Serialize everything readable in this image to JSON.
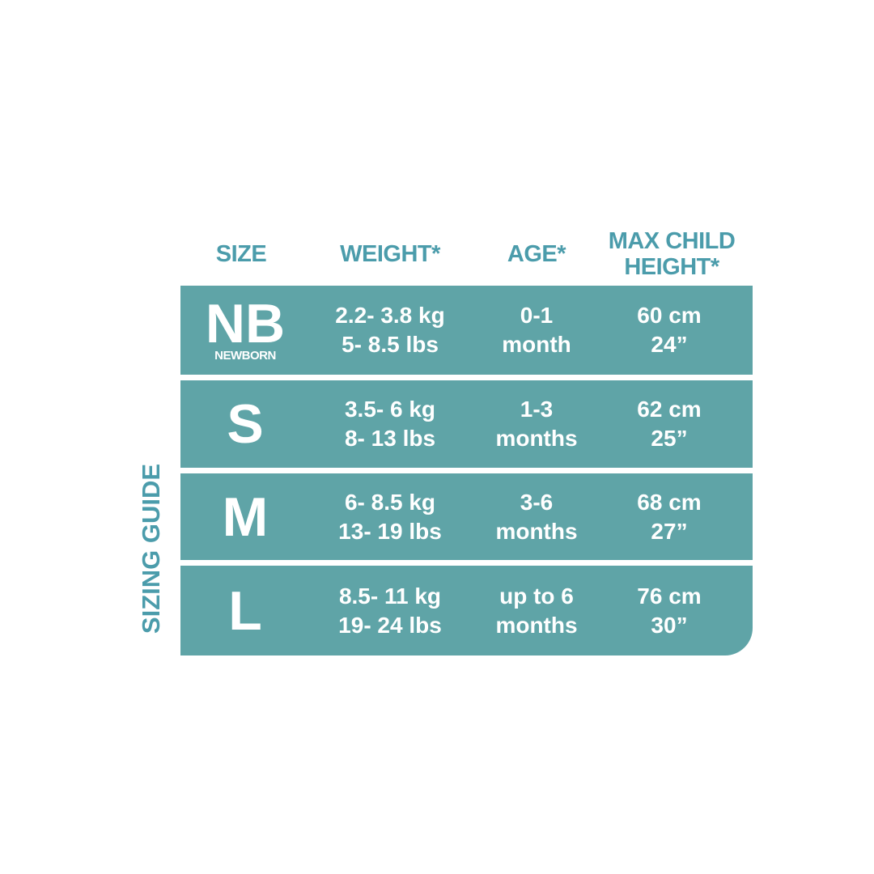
{
  "colors": {
    "row_fill": "#5fa4a7",
    "header_text": "#4b9cab",
    "cell_text": "#ffffff"
  },
  "side_label": "SIZING GUIDE",
  "headers": {
    "size": "SIZE",
    "weight": "WEIGHT*",
    "age": "AGE*",
    "height_line1": "MAX CHILD",
    "height_line2": "HEIGHT*"
  },
  "rows": [
    {
      "size": "NB",
      "size_sub": "NEWBORN",
      "weight_kg": "2.2- 3.8 kg",
      "weight_lbs": "5- 8.5 lbs",
      "age_line1": "0-1",
      "age_line2": "month",
      "height_cm": "60 cm",
      "height_in": "24”"
    },
    {
      "size": "S",
      "size_sub": "",
      "weight_kg": "3.5- 6 kg",
      "weight_lbs": "8- 13 lbs",
      "age_line1": "1-3",
      "age_line2": "months",
      "height_cm": "62 cm",
      "height_in": "25”"
    },
    {
      "size": "M",
      "size_sub": "",
      "weight_kg": "6- 8.5 kg",
      "weight_lbs": "13- 19 lbs",
      "age_line1": "3-6",
      "age_line2": "months",
      "height_cm": "68 cm",
      "height_in": "27”"
    },
    {
      "size": "L",
      "size_sub": "",
      "weight_kg": "8.5- 11 kg",
      "weight_lbs": "19- 24 lbs",
      "age_line1": "up to 6",
      "age_line2": "months",
      "height_cm": "76 cm",
      "height_in": "30”"
    }
  ]
}
